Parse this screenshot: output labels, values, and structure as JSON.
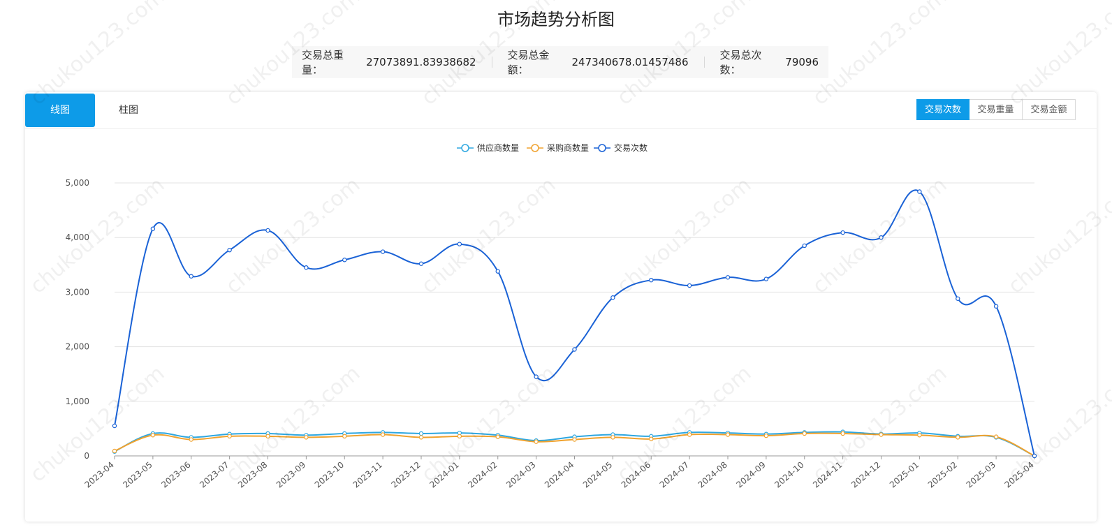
{
  "title": "市场趋势分析图",
  "summary": [
    {
      "label": "交易总重量：",
      "value": "27073891.83938682"
    },
    {
      "label": "交易总金额：",
      "value": "247340678.01457486"
    },
    {
      "label": "交易总次数：",
      "value": "79096"
    }
  ],
  "tabs": [
    {
      "label": "线图",
      "active": true
    },
    {
      "label": "柱图",
      "active": false
    }
  ],
  "metric_buttons": [
    {
      "label": "交易次数",
      "active": true
    },
    {
      "label": "交易重量",
      "active": false
    },
    {
      "label": "交易金额",
      "active": false
    }
  ],
  "watermark": "chukou123.com",
  "chart_data": {
    "type": "line",
    "title": "",
    "xlabel": "",
    "ylabel": "",
    "ylim": [
      0,
      5000
    ],
    "yticks": [
      0,
      1000,
      2000,
      3000,
      4000,
      5000
    ],
    "ytick_labels": [
      "0",
      "1,000",
      "2,000",
      "3,000",
      "4,000",
      "5,000"
    ],
    "grid": true,
    "legend_position": "top-center",
    "categories": [
      "2023-04",
      "2023-05",
      "2023-06",
      "2023-07",
      "2023-08",
      "2023-09",
      "2023-10",
      "2023-11",
      "2023-12",
      "2024-01",
      "2024-02",
      "2024-03",
      "2024-04",
      "2024-05",
      "2024-06",
      "2024-07",
      "2024-08",
      "2024-09",
      "2024-10",
      "2024-11",
      "2024-12",
      "2025-01",
      "2025-02",
      "2025-03",
      "2025-04"
    ],
    "series": [
      {
        "name": "供应商数量",
        "color": "#2ea7e0",
        "values": [
          80,
          410,
          340,
          400,
          410,
          380,
          410,
          430,
          410,
          420,
          380,
          280,
          350,
          390,
          360,
          430,
          420,
          400,
          430,
          440,
          400,
          420,
          360,
          340,
          0
        ]
      },
      {
        "name": "采购商数量",
        "color": "#f0a22e",
        "values": [
          90,
          380,
          300,
          360,
          360,
          340,
          360,
          390,
          340,
          360,
          350,
          260,
          300,
          340,
          310,
          390,
          390,
          370,
          410,
          410,
          390,
          380,
          340,
          350,
          0
        ]
      },
      {
        "name": "交易次数",
        "color": "#1a62d6",
        "values": [
          550,
          4160,
          3290,
          3770,
          4130,
          3450,
          3590,
          3740,
          3520,
          3880,
          3380,
          1450,
          1950,
          2900,
          3220,
          3120,
          3270,
          3240,
          3850,
          4090,
          4000,
          4840,
          2880,
          2740,
          0
        ]
      }
    ]
  }
}
